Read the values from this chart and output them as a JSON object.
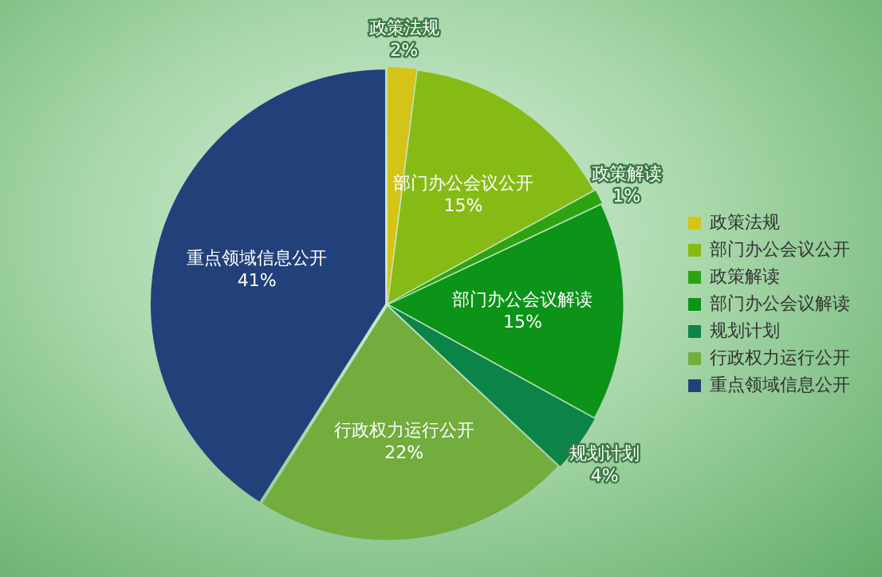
{
  "chart_data": {
    "type": "pie",
    "categories": [
      "政策法规",
      "部门办公会议公开",
      "政策解读",
      "部门办公会议解读",
      "规划计划",
      "行政权力运行公开",
      "重点领域信息公开"
    ],
    "values": [
      2,
      15,
      1,
      15,
      4,
      22,
      41
    ],
    "value_labels": [
      "2%",
      "15%",
      "1%",
      "15%",
      "4%",
      "22%",
      "41%"
    ],
    "colors": [
      "#d4c418",
      "#86bb16",
      "#2ea312",
      "#0b9418",
      "#0c8448",
      "#72ad3e",
      "#22407a"
    ],
    "legend": "right"
  }
}
